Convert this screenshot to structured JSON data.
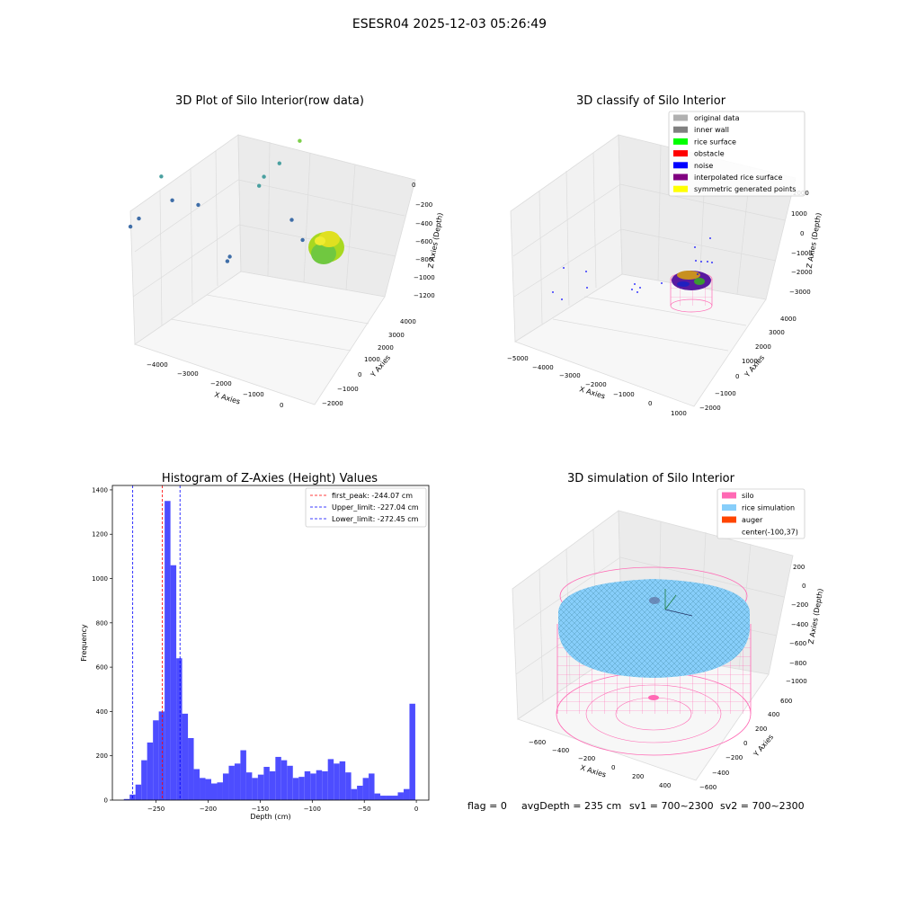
{
  "figure": {
    "suptitle": "ESESR04 2025-12-03 05:26:49",
    "footer": {
      "flag": "flag = 0",
      "avg_depth": "avgDepth = 235 cm",
      "sv1": "sv1 = 700~2300",
      "sv2": "sv2 = 700~2300"
    }
  },
  "colors": {
    "hist_bar": "#4d4dff",
    "peak_line": "#ff0000",
    "limit_line": "#0000ff",
    "silo_pink": "#ff69b4",
    "rice_blue": "#87cefa",
    "auger_orange": "#ff4500",
    "original_gray": "#b0b0b0",
    "inner_wall_gray": "#808080",
    "rice_surface_green": "#00ff00",
    "obstacle_red": "#ff0000",
    "noise_blue": "#0000ff",
    "interp_purple": "#800080",
    "sym_yellow": "#ffff00"
  },
  "chart_data": [
    {
      "type": "scatter",
      "panel": "raw",
      "title": "3D Plot of Silo Interior(row data)",
      "xlabel": "X Axies",
      "ylabel": "Y Axies",
      "zlabel": "Z Axies (Depth)",
      "x_ticks": [
        "−4000",
        "−3000",
        "−2000",
        "−1000",
        "0"
      ],
      "y_ticks": [
        "−2000",
        "−1000",
        "0",
        "1000",
        "2000",
        "3000",
        "4000"
      ],
      "z_ticks": [
        "0",
        "−200",
        "−400",
        "−600",
        "−800",
        "−1000",
        "−1200"
      ],
      "zlim": [
        -1300,
        100
      ],
      "points": [
        {
          "x": -4100,
          "y": -300,
          "z": -1150
        },
        {
          "x": -3800,
          "y": -500,
          "z": -1050
        },
        {
          "x": -3600,
          "y": 800,
          "z": -800
        },
        {
          "x": -3100,
          "y": 200,
          "z": -900
        },
        {
          "x": -2800,
          "y": 1500,
          "z": -1000
        },
        {
          "x": -1600,
          "y": 300,
          "z": -1250
        },
        {
          "x": -1500,
          "y": 200,
          "z": -1200
        },
        {
          "x": -1400,
          "y": 2400,
          "z": -800
        },
        {
          "x": -1200,
          "y": 2200,
          "z": -700
        },
        {
          "x": -900,
          "y": 2600,
          "z": -600
        },
        {
          "x": -400,
          "y": 2800,
          "z": -400
        },
        {
          "x": -200,
          "y": 1500,
          "z": -900
        },
        {
          "x": 200,
          "y": 1200,
          "z": -1000
        }
      ]
    },
    {
      "type": "scatter",
      "panel": "classify",
      "title": "3D classify of Silo Interior",
      "xlabel": "X Axies",
      "ylabel": "Y Axies",
      "zlabel": "Z Axies (Depth)",
      "x_ticks": [
        "−5000",
        "−4000",
        "−3000",
        "−2000",
        "−1000",
        "0",
        "1000"
      ],
      "y_ticks": [
        "−2000",
        "−1000",
        "0",
        "1000",
        "2000",
        "3000",
        "4000"
      ],
      "z_ticks": [
        "2000",
        "1000",
        "0",
        "−1000",
        "−2000",
        "−3000"
      ],
      "legend_position": "upper-right",
      "legend": [
        {
          "label": "original data",
          "color": "#b0b0b0"
        },
        {
          "label": "inner wall",
          "color": "#808080"
        },
        {
          "label": "rice surface",
          "color": "#00ff00"
        },
        {
          "label": "obstacle",
          "color": "#ff0000"
        },
        {
          "label": "noise",
          "color": "#0000ff"
        },
        {
          "label": "interpolated rice surface",
          "color": "#800080"
        },
        {
          "label": "symmetric generated points",
          "color": "#ffff00"
        }
      ]
    },
    {
      "type": "bar",
      "panel": "histogram",
      "title": "Histogram of Z-Axies (Height) Values",
      "xlabel": "Depth (cm)",
      "ylabel": "Frequency",
      "xlim": [
        -292,
        12
      ],
      "ylim": [
        0,
        1420
      ],
      "x_ticks": [
        -250,
        -200,
        -150,
        -100,
        -50,
        0
      ],
      "x_tick_labels": [
        "−250",
        "−200",
        "−150",
        "−100",
        "−50",
        "0"
      ],
      "y_ticks": [
        0,
        200,
        400,
        600,
        800,
        1000,
        1200,
        1400
      ],
      "bin_start": -281,
      "bin_width": 5.6,
      "values": [
        5,
        25,
        70,
        180,
        260,
        360,
        400,
        1350,
        1060,
        640,
        390,
        280,
        140,
        100,
        95,
        75,
        80,
        120,
        155,
        165,
        225,
        125,
        100,
        115,
        150,
        130,
        195,
        180,
        155,
        100,
        105,
        130,
        120,
        135,
        130,
        185,
        165,
        175,
        125,
        50,
        65,
        100,
        120,
        30,
        20,
        20,
        20,
        35,
        50,
        435
      ],
      "lines": [
        {
          "label": "first_peak: -244.07 cm",
          "x": -244.07,
          "color": "#ff0000"
        },
        {
          "label": "Upper_limit: -227.04 cm",
          "x": -227.04,
          "color": "#0000ff"
        },
        {
          "label": "Lower_limit: -272.45 cm",
          "x": -272.45,
          "color": "#0000ff"
        }
      ],
      "legend_position": "upper-right"
    },
    {
      "type": "scatter",
      "panel": "simulation",
      "title": "3D simulation of Silo Interior",
      "xlabel": "X Axies",
      "ylabel": "Y Axies",
      "zlabel": "Z Axies (Depth)",
      "x_ticks": [
        "−600",
        "−400",
        "−200",
        "0",
        "200",
        "400"
      ],
      "y_ticks": [
        "−600",
        "−400",
        "−200",
        "0",
        "200",
        "400",
        "600"
      ],
      "z_ticks": [
        "200",
        "0",
        "−200",
        "−400",
        "−600",
        "−800",
        "−1000"
      ],
      "legend_position": "upper-right",
      "legend": [
        {
          "label": "silo",
          "color": "#ff69b4"
        },
        {
          "label": "rice simulation",
          "color": "#87cefa"
        },
        {
          "label": "auger",
          "color": "#ff4500"
        },
        {
          "label": "center(-100,37)",
          "color": null
        }
      ]
    }
  ]
}
